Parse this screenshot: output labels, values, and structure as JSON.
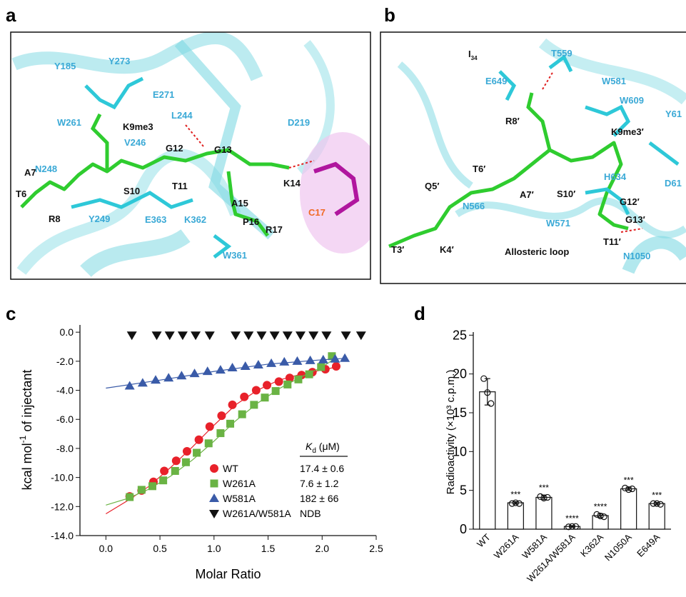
{
  "panel_labels": [
    "a",
    "b",
    "c",
    "d"
  ],
  "panel_a": {
    "protein_label_color": "#3aa9d6",
    "peptide_label_color": "#111111",
    "dna_label_color": "#f06a25",
    "protein_residues": [
      "Y185",
      "Y273",
      "E271",
      "W261",
      "L244",
      "D219",
      "N248",
      "V246",
      "Y249",
      "E363",
      "K362",
      "W361"
    ],
    "peptide_residues": [
      "K9me3",
      "G12",
      "G13",
      "A7",
      "T6",
      "S10",
      "T11",
      "K14",
      "R8",
      "A15",
      "P16",
      "R17"
    ],
    "dna_residue": "C17"
  },
  "panel_b": {
    "protein_label_color": "#3aa9d6",
    "peptide_label_color": "#111111",
    "ligand": {
      "text": "I",
      "sub": "34"
    },
    "protein_residues": [
      "T559",
      "E649",
      "W581",
      "W609",
      "Y61",
      "H634",
      "N566",
      "W571",
      "N1050",
      "D61"
    ],
    "peptide_residues": [
      "R8′",
      "K9me3′",
      "T6′",
      "Q5′",
      "A7′",
      "S10′",
      "G12′",
      "T3′",
      "K4′",
      "G13′",
      "T11′"
    ],
    "region_label": "Allosteric loop"
  },
  "chart_data": [
    {
      "type": "scatter",
      "x_label": "Molar Ratio",
      "y_label": {
        "text": "kcal mol",
        "sup": "-1",
        "tail": " of injectant"
      },
      "xlim": [
        -0.24,
        2.5
      ],
      "xticks": [
        {
          "value": 0,
          "label": "0.0"
        },
        {
          "value": 0.5,
          "label": "0.5"
        },
        {
          "value": 1,
          "label": "1.0"
        },
        {
          "value": 1.5,
          "label": "1.5"
        },
        {
          "value": 2,
          "label": "2.0"
        },
        {
          "value": 2.5,
          "label": "2.5"
        }
      ],
      "ylim": [
        -14,
        0.5
      ],
      "yticks": [
        {
          "value": 0,
          "label": "0.0"
        },
        {
          "value": -2,
          "label": "-2.0"
        },
        {
          "value": -4,
          "label": "-4.0"
        },
        {
          "value": -6,
          "label": "-6.0"
        },
        {
          "value": -8,
          "label": "-8.0"
        },
        {
          "value": -10,
          "label": "-10.0"
        },
        {
          "value": -12,
          "label": "-12.0"
        },
        {
          "value": -14,
          "label": "-14.0"
        }
      ],
      "kd_header": {
        "symbol": "K",
        "sub": "d",
        "unit": " (μM)"
      },
      "series": [
        {
          "name": "WT",
          "color": "#e8212a",
          "marker": "circle",
          "kd": "17.4 ± 0.6",
          "x": [
            0.22,
            0.33,
            0.44,
            0.54,
            0.65,
            0.75,
            0.86,
            0.96,
            1.07,
            1.17,
            1.28,
            1.39,
            1.49,
            1.6,
            1.7,
            1.81,
            1.91,
            2.03,
            2.13
          ],
          "values": [
            -11.3,
            -10.9,
            -10.3,
            -9.55,
            -8.85,
            -8.2,
            -7.4,
            -6.5,
            -5.75,
            -5.0,
            -4.45,
            -4.0,
            -3.65,
            -3.4,
            -3.15,
            -2.95,
            -2.75,
            -2.55,
            -2.35
          ],
          "fit": {
            "x": [
              0,
              0.2,
              0.4,
              0.6,
              0.8,
              1.0,
              1.2,
              1.4,
              1.6,
              1.8,
              2.0,
              2.13
            ],
            "values": [
              -12.5,
              -11.6,
              -10.6,
              -9.3,
              -7.9,
              -6.4,
              -5.0,
              -4.0,
              -3.3,
              -2.9,
              -2.6,
              -2.4
            ]
          }
        },
        {
          "name": "W261A",
          "color": "#6ab344",
          "marker": "square",
          "kd": "7.6 ± 1.2",
          "x": [
            0.22,
            0.33,
            0.43,
            0.53,
            0.64,
            0.74,
            0.84,
            0.95,
            1.06,
            1.15,
            1.26,
            1.37,
            1.47,
            1.57,
            1.68,
            1.78,
            1.88,
            1.99,
            2.09
          ],
          "values": [
            -11.35,
            -10.85,
            -10.6,
            -10.2,
            -9.55,
            -8.95,
            -8.3,
            -7.65,
            -6.95,
            -6.3,
            -5.65,
            -5.0,
            -4.5,
            -4.05,
            -3.6,
            -3.25,
            -2.9,
            -2.4,
            -1.65
          ],
          "fit": {
            "x": [
              0,
              0.2,
              0.4,
              0.6,
              0.8,
              1.0,
              1.2,
              1.4,
              1.6,
              1.8,
              2.0,
              2.1
            ],
            "values": [
              -11.9,
              -11.45,
              -10.8,
              -9.9,
              -8.8,
              -7.5,
              -6.1,
              -4.9,
              -3.9,
              -3.1,
              -2.4,
              -1.9
            ]
          }
        },
        {
          "name": "W581A",
          "color": "#3a5ba8",
          "marker": "triangle",
          "kd": "182 ± 66",
          "x": [
            0.22,
            0.34,
            0.46,
            0.58,
            0.7,
            0.82,
            0.94,
            1.06,
            1.17,
            1.29,
            1.41,
            1.53,
            1.65,
            1.77,
            1.89,
            2.01,
            2.12,
            2.21
          ],
          "values": [
            -3.7,
            -3.5,
            -3.3,
            -3.15,
            -3.0,
            -2.85,
            -2.7,
            -2.6,
            -2.45,
            -2.35,
            -2.25,
            -2.15,
            -2.05,
            -2.0,
            -1.95,
            -1.9,
            -1.85,
            -1.8
          ],
          "fit": {
            "x": [
              0,
              0.5,
              1.0,
              1.5,
              2.0,
              2.21
            ],
            "values": [
              -3.85,
              -3.3,
              -2.7,
              -2.2,
              -1.9,
              -1.8
            ]
          }
        },
        {
          "name": "W261A/W581A",
          "color": "#111111",
          "marker": "triangle-down",
          "kd": "NDB",
          "x": [
            0.24,
            0.47,
            0.59,
            0.71,
            0.83,
            0.96,
            1.2,
            1.32,
            1.44,
            1.56,
            1.68,
            1.8,
            1.92,
            2.04,
            2.22,
            2.36
          ],
          "values": [
            -0.2,
            -0.2,
            -0.2,
            -0.2,
            -0.2,
            -0.2,
            -0.2,
            -0.2,
            -0.2,
            -0.2,
            -0.2,
            -0.2,
            -0.2,
            -0.2,
            -0.2,
            -0.2
          ]
        }
      ]
    },
    {
      "type": "bar",
      "y_label": "Radioactivity (×10³ c.p.m.)",
      "categories": [
        "WT",
        "W261A",
        "W581A",
        "W261A/W581A",
        "K362A",
        "N1050A",
        "E649A"
      ],
      "values": [
        17.7,
        3.4,
        4.1,
        0.35,
        1.75,
        5.2,
        3.3
      ],
      "errors": [
        1.7,
        0.15,
        0.3,
        0.1,
        0.25,
        0.2,
        0.15
      ],
      "points": [
        [
          19.4,
          17.6,
          16.2
        ],
        [
          3.3,
          3.4,
          3.3
        ],
        [
          4.2,
          4.0,
          4.1
        ],
        [
          0.3,
          0.35,
          0.35
        ],
        [
          1.9,
          1.7,
          1.6
        ],
        [
          5.3,
          5.1,
          5.2
        ],
        [
          3.3,
          3.3,
          3.2
        ]
      ],
      "significance": [
        null,
        "***",
        "***",
        "****",
        "****",
        "***",
        "***"
      ],
      "ylim": [
        0,
        25.4
      ],
      "yticks": [
        0,
        5,
        10,
        15,
        20,
        25
      ],
      "color": "#ffffff"
    }
  ]
}
